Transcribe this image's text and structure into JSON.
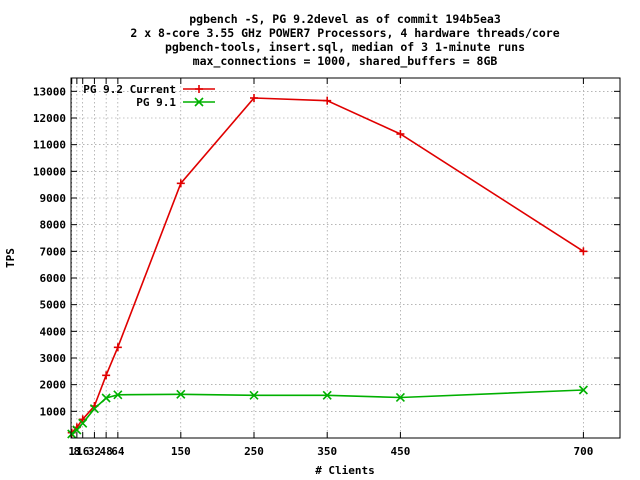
{
  "chart_data": {
    "type": "line",
    "title_lines": [
      "pgbench -S, PG 9.2devel as of commit 194b5ea3",
      "2 x 8-core 3.55 GHz POWER7 Processors, 4 hardware threads/core",
      "pgbench-tools, insert.sql, median of 3 1-minute runs",
      "max_connections = 1000, shared_buffers = 8GB"
    ],
    "xlabel": "# Clients",
    "ylabel": "TPS",
    "xlim": [
      0,
      750
    ],
    "ylim": [
      0,
      13500
    ],
    "xticks": [
      1,
      8,
      16,
      32,
      48,
      64,
      150,
      250,
      350,
      450,
      700
    ],
    "xtick_labels": [
      "1",
      "8",
      "16",
      "32",
      "48",
      "64",
      "150",
      "250",
      "350",
      "450",
      "700"
    ],
    "yticks": [
      1000,
      2000,
      3000,
      4000,
      5000,
      6000,
      7000,
      8000,
      9000,
      10000,
      11000,
      12000,
      13000
    ],
    "grid": true,
    "legend_position": "top-left",
    "series": [
      {
        "name": "PG 9.2 Current",
        "color": "#e00000",
        "marker": "plus",
        "x": [
          1,
          8,
          16,
          32,
          48,
          64,
          150,
          250,
          350,
          450,
          700
        ],
        "y": [
          200,
          400,
          700,
          1200,
          2350,
          3400,
          9550,
          12750,
          12650,
          11400,
          7000
        ]
      },
      {
        "name": "PG 9.1",
        "color": "#00b000",
        "marker": "cross",
        "x": [
          1,
          8,
          16,
          32,
          48,
          64,
          150,
          250,
          350,
          450,
          700
        ],
        "y": [
          150,
          300,
          550,
          1100,
          1500,
          1620,
          1640,
          1600,
          1600,
          1520,
          1800
        ]
      }
    ]
  }
}
